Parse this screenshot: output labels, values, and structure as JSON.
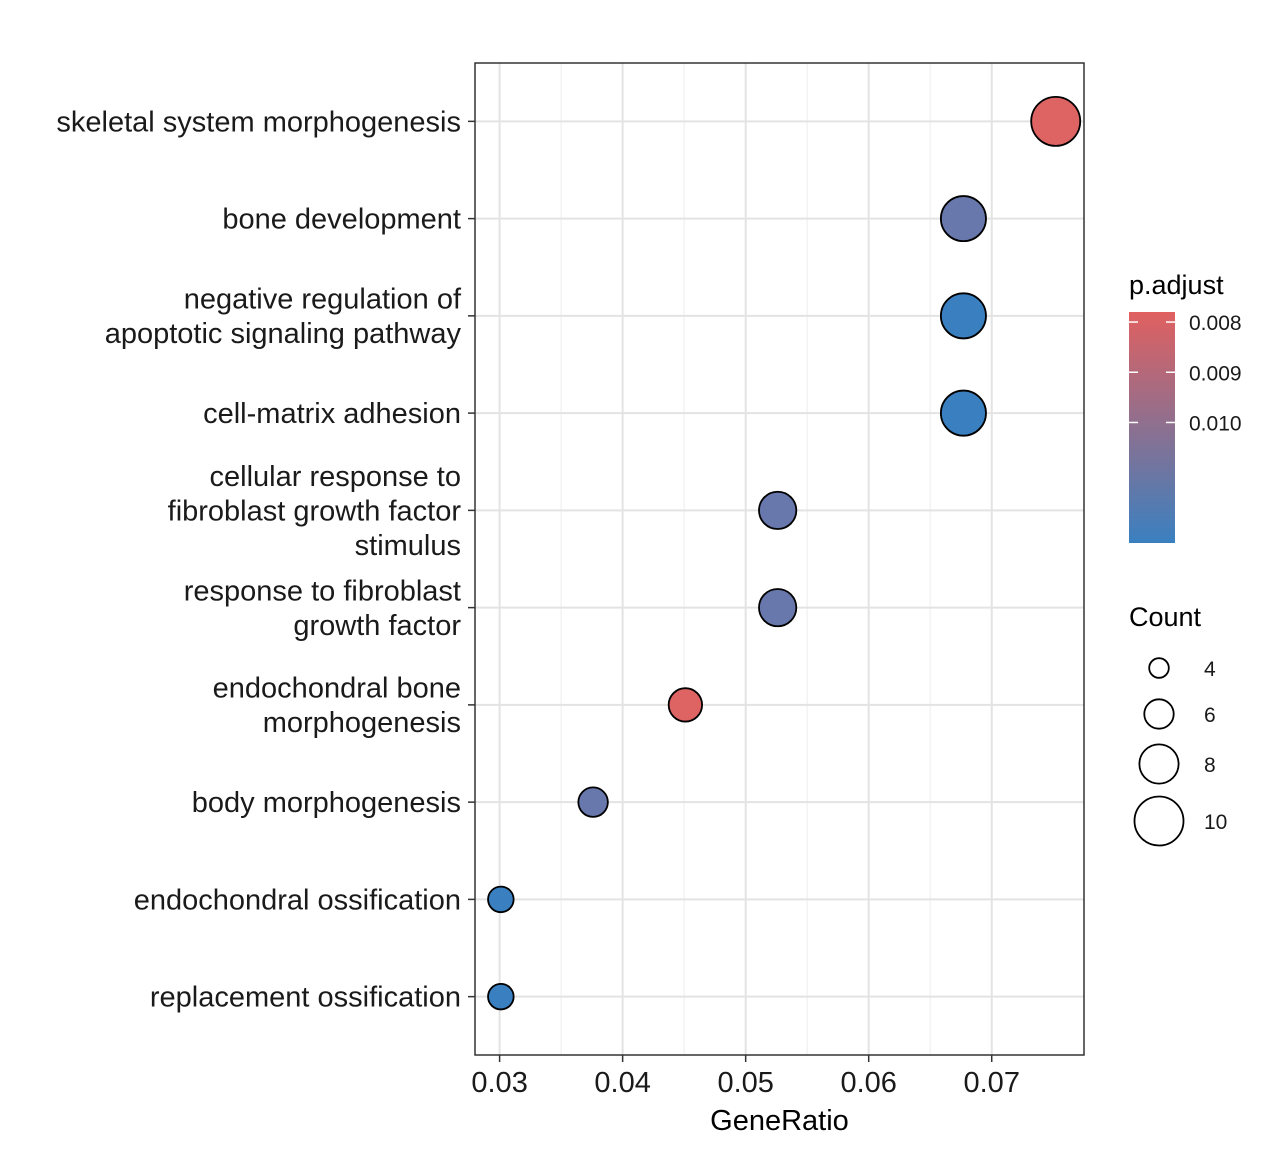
{
  "chart_data": {
    "type": "scatter",
    "xlabel": "GeneRatio",
    "ylabel": "",
    "xlim": [
      0.028,
      0.0775
    ],
    "x_ticks": [
      {
        "value": 0.03,
        "label": "0.03"
      },
      {
        "value": 0.04,
        "label": "0.04"
      },
      {
        "value": 0.05,
        "label": "0.05"
      },
      {
        "value": 0.06,
        "label": "0.06"
      },
      {
        "value": 0.07,
        "label": "0.07"
      }
    ],
    "grid": true,
    "points": [
      {
        "term": "skeletal system morphogenesis",
        "lines": [
          "skeletal system morphogenesis"
        ],
        "x": 0.0752,
        "count": 10,
        "p_adjust": 0.0078,
        "color": "#de6464"
      },
      {
        "term": "bone development",
        "lines": [
          "bone development"
        ],
        "x": 0.0677,
        "count": 9,
        "p_adjust": 0.011,
        "color": "#6878ad"
      },
      {
        "term": "negative regulation of apoptotic signaling pathway",
        "lines": [
          "negative regulation of",
          "apoptotic signaling pathway"
        ],
        "x": 0.0677,
        "count": 9,
        "p_adjust": 0.0123,
        "color": "#3a80c0"
      },
      {
        "term": "cell-matrix adhesion",
        "lines": [
          "cell-matrix adhesion"
        ],
        "x": 0.0677,
        "count": 9,
        "p_adjust": 0.0123,
        "color": "#3a80c0"
      },
      {
        "term": "cellular response to fibroblast growth factor stimulus",
        "lines": [
          "cellular response to",
          "fibroblast growth factor",
          "stimulus"
        ],
        "x": 0.0526,
        "count": 7,
        "p_adjust": 0.011,
        "color": "#6878ad"
      },
      {
        "term": "response to fibroblast growth factor",
        "lines": [
          "response to fibroblast",
          "growth factor"
        ],
        "x": 0.0526,
        "count": 7,
        "p_adjust": 0.011,
        "color": "#6878ad"
      },
      {
        "term": "endochondral bone morphogenesis",
        "lines": [
          "endochondral bone",
          "morphogenesis"
        ],
        "x": 0.0451,
        "count": 6,
        "p_adjust": 0.0078,
        "color": "#de6464"
      },
      {
        "term": "body morphogenesis",
        "lines": [
          "body morphogenesis"
        ],
        "x": 0.0376,
        "count": 5,
        "p_adjust": 0.011,
        "color": "#6878ad"
      },
      {
        "term": "endochondral ossification",
        "lines": [
          "endochondral ossification"
        ],
        "x": 0.0301,
        "count": 4,
        "p_adjust": 0.0123,
        "color": "#3a80c0"
      },
      {
        "term": "replacement ossification",
        "lines": [
          "replacement ossification"
        ],
        "x": 0.0301,
        "count": 4,
        "p_adjust": 0.0123,
        "color": "#3a80c0"
      }
    ],
    "legend": {
      "placement": "right",
      "color": {
        "title": "p.adjust",
        "gradient_top": "#e06060",
        "gradient_bottom": "#3a80c0",
        "ticks": [
          "0.008",
          "0.009",
          "0.010"
        ],
        "tick_values": [
          0.008,
          0.009,
          0.01
        ],
        "range": [
          0.0078,
          0.0124
        ]
      },
      "size": {
        "title": "Count",
        "entries": [
          {
            "label": "4",
            "value": 4
          },
          {
            "label": "6",
            "value": 6
          },
          {
            "label": "8",
            "value": 8
          },
          {
            "label": "10",
            "value": 10
          }
        ]
      }
    }
  }
}
